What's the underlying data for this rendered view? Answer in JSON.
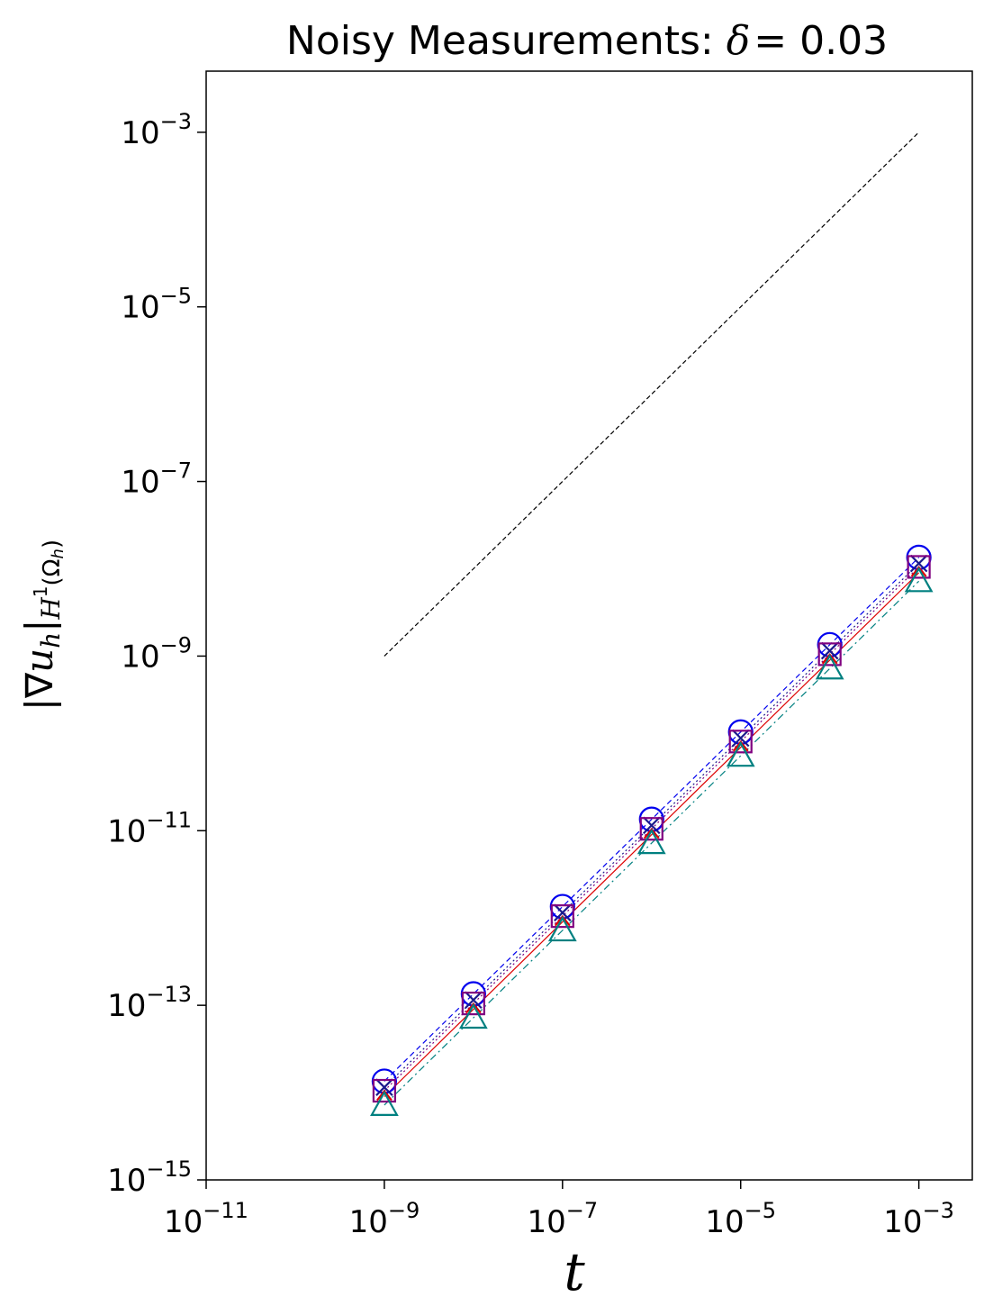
{
  "chart_data": {
    "type": "line",
    "title_text": "Noisy Measurements: ",
    "title_symbol": "δ",
    "title_value": "= 0.03",
    "xlabel": "t",
    "ylabel": {
      "main": "|∇",
      "u": "u",
      "dot": "˙",
      "sub_h": "h",
      "bar": "|",
      "norm": "H",
      "norm_sup": "1",
      "norm_domain": "(Ω",
      "norm_domain_sub": "h",
      "norm_close": ")"
    },
    "x_scale": "log",
    "y_scale": "log",
    "xlim_exp": [
      -11,
      -2.4
    ],
    "ylim_exp": [
      -15,
      -2.3
    ],
    "x_ticks": [
      {
        "base": "10",
        "exp": "−11",
        "value": -11
      },
      {
        "base": "10",
        "exp": "−9",
        "value": -9
      },
      {
        "base": "10",
        "exp": "−7",
        "value": -7
      },
      {
        "base": "10",
        "exp": "−5",
        "value": -5
      },
      {
        "base": "10",
        "exp": "−3",
        "value": -3
      }
    ],
    "y_ticks": [
      {
        "base": "10",
        "exp": "−15",
        "value": -15
      },
      {
        "base": "10",
        "exp": "−13",
        "value": -13
      },
      {
        "base": "10",
        "exp": "−11",
        "value": -11
      },
      {
        "base": "10",
        "exp": "−9",
        "value": -9
      },
      {
        "base": "10",
        "exp": "−7",
        "value": -7
      },
      {
        "base": "10",
        "exp": "−5",
        "value": -5
      },
      {
        "base": "10",
        "exp": "−3",
        "value": -3
      }
    ],
    "x": [
      1e-09,
      1e-08,
      1e-07,
      1e-06,
      1e-05,
      0.0001,
      0.001
    ],
    "reference_line": {
      "x": [
        1e-09,
        0.001
      ],
      "y": [
        1e-09,
        0.001
      ],
      "color": "#000000",
      "style": "dashed"
    },
    "series": [
      {
        "marker": "circle",
        "color": "#0000ee",
        "line_style": "dashed",
        "values": [
          1.35e-14,
          1.35e-13,
          1.35e-12,
          1.35e-11,
          1.35e-10,
          1.35e-09,
          1.35e-08
        ]
      },
      {
        "marker": "x",
        "color": "#1a1a8c",
        "line_style": "dotted",
        "values": [
          1.15e-14,
          1.15e-13,
          1.15e-12,
          1.15e-11,
          1.15e-10,
          1.15e-09,
          1.15e-08
        ]
      },
      {
        "marker": "square",
        "color": "#800080",
        "line_style": "dotted",
        "values": [
          1.05e-14,
          1.05e-13,
          1.05e-12,
          1.05e-11,
          1.05e-10,
          1.05e-09,
          1.05e-08
        ]
      },
      {
        "marker": "triangle-down",
        "color": "#dd0000",
        "line_style": "solid",
        "values": [
          9e-15,
          9e-14,
          9e-13,
          9e-12,
          9e-11,
          9e-10,
          9e-09
        ]
      },
      {
        "marker": "triangle-up",
        "color": "#008080",
        "line_style": "dashdot",
        "values": [
          7.2e-15,
          7.2e-14,
          7.2e-13,
          7.2e-12,
          7.2e-11,
          7.2e-10,
          7.2e-09
        ]
      }
    ],
    "grid": false,
    "legend": "none"
  }
}
